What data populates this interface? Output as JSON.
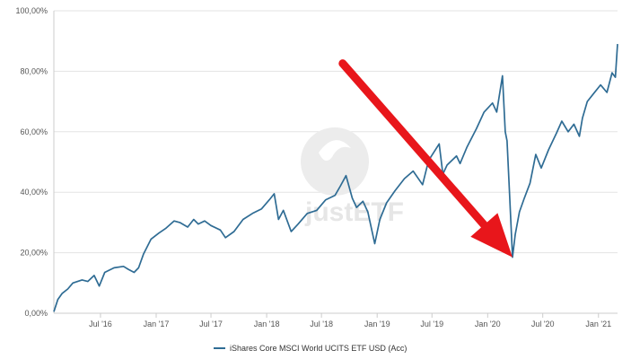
{
  "chart_data": {
    "type": "line",
    "title": "",
    "xlabel": "",
    "ylabel": "",
    "ylim": [
      0,
      100
    ],
    "xlim": [
      "2016-01-29",
      "2021-03-05"
    ],
    "grid": {
      "horizontal": true,
      "vertical": false
    },
    "legend_position": "bottom-center",
    "y_tick_labels": [
      "0,00%",
      "20,00%",
      "40,00%",
      "60,00%",
      "80,00%",
      "100,00%"
    ],
    "y_ticks": [
      0,
      20,
      40,
      60,
      80,
      100
    ],
    "x_tick_labels": [
      "Jul '16",
      "Jan '17",
      "Jul '17",
      "Jan '18",
      "Jul '18",
      "Jan '19",
      "Jul '19",
      "Jan '20",
      "Jul '20",
      "Jan '21"
    ],
    "x_ticks": [
      "2016-07-01",
      "2017-01-01",
      "2017-07-01",
      "2018-01-01",
      "2018-07-01",
      "2019-01-01",
      "2019-07-01",
      "2020-01-01",
      "2020-07-01",
      "2021-01-01"
    ],
    "series": [
      {
        "name": "iShares Core MSCI World UCITS ETF USD (Acc)",
        "color": "#2f6c94",
        "x": [
          "2016-01-29",
          "2016-02-11",
          "2016-02-25",
          "2016-03-15",
          "2016-04-01",
          "2016-05-01",
          "2016-05-20",
          "2016-06-10",
          "2016-06-27",
          "2016-07-15",
          "2016-08-15",
          "2016-09-15",
          "2016-10-01",
          "2016-10-20",
          "2016-11-04",
          "2016-11-20",
          "2016-12-15",
          "2017-01-10",
          "2017-02-01",
          "2017-03-01",
          "2017-03-20",
          "2017-04-15",
          "2017-05-05",
          "2017-05-20",
          "2017-06-10",
          "2017-07-01",
          "2017-08-01",
          "2017-08-18",
          "2017-09-15",
          "2017-10-15",
          "2017-11-15",
          "2017-12-15",
          "2018-01-10",
          "2018-01-26",
          "2018-02-09",
          "2018-02-25",
          "2018-03-23",
          "2018-04-15",
          "2018-05-15",
          "2018-06-15",
          "2018-07-15",
          "2018-08-15",
          "2018-09-01",
          "2018-09-20",
          "2018-10-11",
          "2018-10-25",
          "2018-11-15",
          "2018-12-01",
          "2018-12-24",
          "2019-01-10",
          "2019-02-01",
          "2019-03-01",
          "2019-04-01",
          "2019-04-30",
          "2019-05-31",
          "2019-06-20",
          "2019-07-25",
          "2019-08-06",
          "2019-08-20",
          "2019-09-20",
          "2019-10-02",
          "2019-10-25",
          "2019-11-25",
          "2019-12-20",
          "2020-01-17",
          "2020-01-31",
          "2020-02-19",
          "2020-02-28",
          "2020-03-05",
          "2020-03-12",
          "2020-03-23",
          "2020-04-01",
          "2020-04-15",
          "2020-05-01",
          "2020-05-20",
          "2020-06-08",
          "2020-06-26",
          "2020-07-20",
          "2020-08-15",
          "2020-09-02",
          "2020-09-23",
          "2020-10-12",
          "2020-10-30",
          "2020-11-09",
          "2020-11-25",
          "2020-12-15",
          "2021-01-08",
          "2021-01-29",
          "2021-02-15",
          "2021-02-26",
          "2021-03-05"
        ],
        "values": [
          0.5,
          4.5,
          6.5,
          8.0,
          10.0,
          11.0,
          10.5,
          12.5,
          9.0,
          13.5,
          15.0,
          15.5,
          14.5,
          13.5,
          15.0,
          19.5,
          24.5,
          26.5,
          28.0,
          30.5,
          30.0,
          28.5,
          31.0,
          29.5,
          30.5,
          29.0,
          27.5,
          25.0,
          27.0,
          31.0,
          33.0,
          34.5,
          37.5,
          39.5,
          31.0,
          34.0,
          27.0,
          29.5,
          33.0,
          34.0,
          37.5,
          39.0,
          42.0,
          45.5,
          38.0,
          35.0,
          37.0,
          33.5,
          23.0,
          31.0,
          36.5,
          40.5,
          44.5,
          47.0,
          42.5,
          50.5,
          56.0,
          46.0,
          49.0,
          52.0,
          49.5,
          55.0,
          61.0,
          66.5,
          69.5,
          66.5,
          78.5,
          60.0,
          57.0,
          42.0,
          18.5,
          26.0,
          33.5,
          38.0,
          43.0,
          52.5,
          48.0,
          54.0,
          59.5,
          63.5,
          60.0,
          62.5,
          58.5,
          64.5,
          70.0,
          72.5,
          75.5,
          73.0,
          79.5,
          78.0,
          89.0
        ]
      }
    ],
    "annotation": {
      "type": "arrow",
      "color": "#e8161b",
      "from_date": "2020-02-10",
      "to_date": "2020-03-23",
      "points_to_value": 18.5
    }
  },
  "legend": {
    "label": "iShares Core MSCI World UCITS ETF USD (Acc)"
  },
  "watermark": {
    "text": "justETF"
  }
}
